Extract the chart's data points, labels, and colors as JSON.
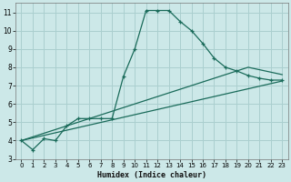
{
  "xlabel": "Humidex (Indice chaleur)",
  "bg_color": "#cce8e8",
  "grid_color": "#aacfcf",
  "line_color": "#1a6b5a",
  "xlim": [
    -0.5,
    23.5
  ],
  "ylim": [
    3,
    11.5
  ],
  "yticks": [
    3,
    4,
    5,
    6,
    7,
    8,
    9,
    10,
    11
  ],
  "xticks": [
    0,
    1,
    2,
    3,
    4,
    5,
    6,
    7,
    8,
    9,
    10,
    11,
    12,
    13,
    14,
    15,
    16,
    17,
    18,
    19,
    20,
    21,
    22,
    23
  ],
  "line1_x": [
    0,
    1,
    2,
    3,
    4,
    5,
    6,
    7,
    8,
    9,
    10,
    11,
    12,
    13,
    14,
    15,
    16,
    17,
    18,
    19,
    20,
    21,
    22,
    23
  ],
  "line1_y": [
    4.0,
    3.5,
    4.1,
    4.0,
    4.8,
    5.2,
    5.2,
    5.2,
    5.2,
    7.5,
    9.0,
    11.1,
    11.1,
    11.1,
    10.5,
    10.0,
    9.3,
    8.5,
    8.0,
    7.8,
    7.55,
    7.4,
    7.3,
    7.3
  ],
  "line2_x": [
    0,
    23
  ],
  "line2_y": [
    4.0,
    7.25
  ],
  "line3_x": [
    0,
    20,
    23
  ],
  "line3_y": [
    4.0,
    8.0,
    7.6
  ]
}
